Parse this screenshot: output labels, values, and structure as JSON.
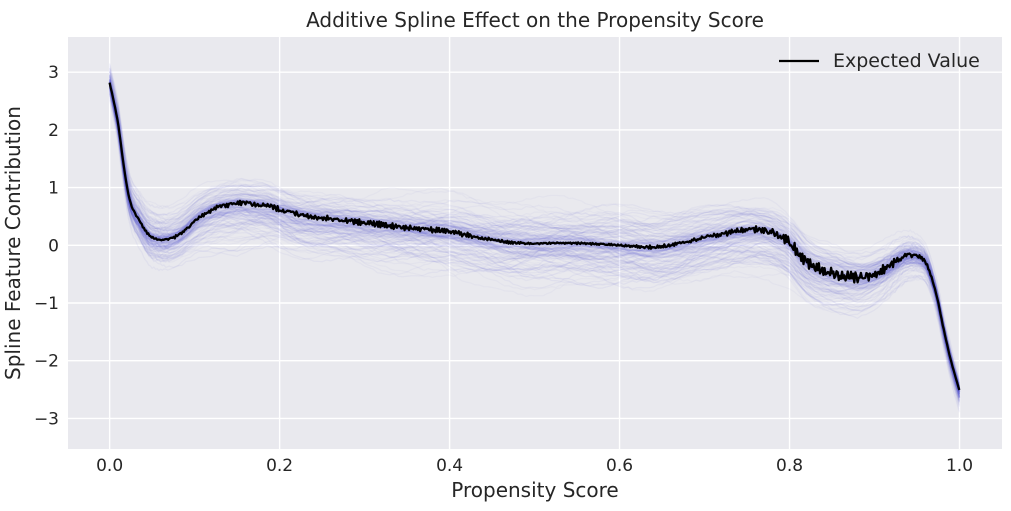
{
  "chart_data": {
    "type": "line",
    "title": "Additive Spline Effect on the Propensity Score",
    "xlabel": "Propensity Score",
    "ylabel": "Spline Feature Contribution",
    "xlim": [
      -0.049,
      1.05
    ],
    "ylim": [
      -3.53,
      3.61
    ],
    "xticks": [
      0.0,
      0.2,
      0.4,
      0.6,
      0.8,
      1.0
    ],
    "xtick_labels": [
      "0.0",
      "0.2",
      "0.4",
      "0.6",
      "0.8",
      "1.0"
    ],
    "yticks": [
      3,
      2,
      1,
      0,
      -1,
      -2,
      -3
    ],
    "ytick_labels": [
      "3",
      "2",
      "1",
      "0",
      "−1",
      "−2",
      "−3"
    ],
    "grid": true,
    "legend": {
      "position": "upper right",
      "entries": [
        {
          "label": "Expected Value",
          "color": "#000000"
        }
      ]
    },
    "colors": {
      "figure_bg": "#ffffff",
      "axes_bg": "#e9e9ee",
      "grid": "#ffffff",
      "mean_line": "#000000",
      "band": "#5a5ad2",
      "text": "#262626"
    },
    "series": [
      {
        "name": "Expected Value",
        "role": "mean-line",
        "x": [
          0,
          0.005,
          0.01,
          0.015,
          0.02,
          0.025,
          0.03,
          0.035,
          0.04,
          0.045,
          0.05,
          0.06,
          0.07,
          0.08,
          0.09,
          0.1,
          0.11,
          0.12,
          0.13,
          0.14,
          0.15,
          0.16,
          0.17,
          0.18,
          0.19,
          0.2,
          0.22,
          0.24,
          0.26,
          0.28,
          0.3,
          0.32,
          0.34,
          0.36,
          0.38,
          0.4,
          0.43,
          0.46,
          0.48,
          0.5,
          0.53,
          0.56,
          0.59,
          0.62,
          0.64,
          0.66,
          0.675,
          0.69,
          0.705,
          0.72,
          0.735,
          0.75,
          0.765,
          0.78,
          0.79,
          0.8,
          0.81,
          0.82,
          0.83,
          0.845,
          0.86,
          0.875,
          0.89,
          0.9,
          0.915,
          0.925,
          0.935,
          0.945,
          0.955,
          0.962,
          0.97,
          0.975,
          0.982,
          0.99,
          1.0
        ],
        "y": [
          2.82,
          2.48,
          2.1,
          1.55,
          1.05,
          0.72,
          0.55,
          0.43,
          0.3,
          0.2,
          0.14,
          0.1,
          0.11,
          0.17,
          0.28,
          0.42,
          0.53,
          0.61,
          0.67,
          0.7,
          0.73,
          0.73,
          0.71,
          0.7,
          0.67,
          0.62,
          0.54,
          0.49,
          0.46,
          0.43,
          0.39,
          0.36,
          0.32,
          0.29,
          0.27,
          0.24,
          0.15,
          0.07,
          0.04,
          0.03,
          0.04,
          0.03,
          0.01,
          -0.02,
          -0.03,
          0.0,
          0.05,
          0.1,
          0.15,
          0.19,
          0.24,
          0.265,
          0.27,
          0.22,
          0.15,
          0.05,
          -0.12,
          -0.28,
          -0.38,
          -0.46,
          -0.51,
          -0.55,
          -0.54,
          -0.49,
          -0.38,
          -0.28,
          -0.19,
          -0.17,
          -0.22,
          -0.35,
          -0.7,
          -1.0,
          -1.5,
          -2.0,
          -2.52
        ]
      }
    ],
    "band": {
      "name": "sampled-spline-curves",
      "x": [
        0.0,
        0.02,
        0.05,
        0.09,
        0.12,
        0.15,
        0.2,
        0.3,
        0.4,
        0.5,
        0.6,
        0.7,
        0.76,
        0.8,
        0.85,
        0.88,
        0.92,
        0.945,
        0.97,
        1.0
      ],
      "hi": [
        0.38,
        0.52,
        0.7,
        0.62,
        0.58,
        0.55,
        0.58,
        0.65,
        0.85,
        0.9,
        0.85,
        0.7,
        0.6,
        0.62,
        0.68,
        0.62,
        0.55,
        0.48,
        0.36,
        0.28
      ],
      "lo": [
        0.35,
        0.5,
        0.6,
        0.65,
        0.9,
        1.1,
        0.95,
        1.0,
        0.95,
        0.9,
        0.9,
        0.85,
        0.9,
        0.95,
        0.9,
        0.85,
        0.62,
        0.52,
        0.4,
        0.48
      ]
    },
    "noise_amp": {
      "x": [
        0,
        0.03,
        0.06,
        0.1,
        0.14,
        0.18,
        0.25,
        0.32,
        0.4,
        0.45,
        0.5,
        0.56,
        0.6,
        0.65,
        0.7,
        0.74,
        0.78,
        0.81,
        0.84,
        0.87,
        0.9,
        0.93,
        0.95,
        0.97,
        1.0
      ],
      "a": [
        0.003,
        0.008,
        0.012,
        0.02,
        0.025,
        0.03,
        0.03,
        0.03,
        0.03,
        0.02,
        0.008,
        0.01,
        0.012,
        0.02,
        0.025,
        0.03,
        0.04,
        0.06,
        0.065,
        0.06,
        0.055,
        0.035,
        0.02,
        0.008,
        0.003
      ]
    }
  }
}
